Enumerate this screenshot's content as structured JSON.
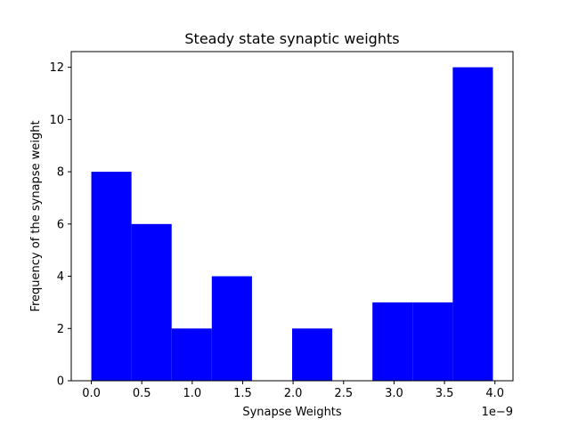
{
  "chart_data": {
    "type": "bar",
    "title": "Steady state synaptic weights",
    "xlabel": "Synapse Weights",
    "ylabel": "Frequency of the synapse weight",
    "x_offset_text": "1e−9",
    "bins": [
      {
        "start": 0.0,
        "end": 0.398,
        "count": 8
      },
      {
        "start": 0.398,
        "end": 0.796,
        "count": 6
      },
      {
        "start": 0.796,
        "end": 1.194,
        "count": 2
      },
      {
        "start": 1.194,
        "end": 1.592,
        "count": 4
      },
      {
        "start": 1.592,
        "end": 1.99,
        "count": 0
      },
      {
        "start": 1.99,
        "end": 2.388,
        "count": 2
      },
      {
        "start": 2.388,
        "end": 2.786,
        "count": 0
      },
      {
        "start": 2.786,
        "end": 3.184,
        "count": 3
      },
      {
        "start": 3.184,
        "end": 3.582,
        "count": 3
      },
      {
        "start": 3.582,
        "end": 3.98,
        "count": 12
      }
    ],
    "xlim": [
      -0.199,
      4.179
    ],
    "ylim": [
      0,
      12.6
    ],
    "x_ticks": [
      {
        "value": 0.0,
        "label": "0.0"
      },
      {
        "value": 0.5,
        "label": "0.5"
      },
      {
        "value": 1.0,
        "label": "1.0"
      },
      {
        "value": 1.5,
        "label": "1.5"
      },
      {
        "value": 2.0,
        "label": "2.0"
      },
      {
        "value": 2.5,
        "label": "2.5"
      },
      {
        "value": 3.0,
        "label": "3.0"
      },
      {
        "value": 3.5,
        "label": "3.5"
      },
      {
        "value": 4.0,
        "label": "4.0"
      }
    ],
    "y_ticks": [
      {
        "value": 0,
        "label": "0"
      },
      {
        "value": 2,
        "label": "2"
      },
      {
        "value": 4,
        "label": "4"
      },
      {
        "value": 6,
        "label": "6"
      },
      {
        "value": 8,
        "label": "8"
      },
      {
        "value": 10,
        "label": "10"
      },
      {
        "value": 12,
        "label": "12"
      }
    ],
    "bar_color": "#0000ff",
    "grid": false,
    "legend": "none"
  }
}
